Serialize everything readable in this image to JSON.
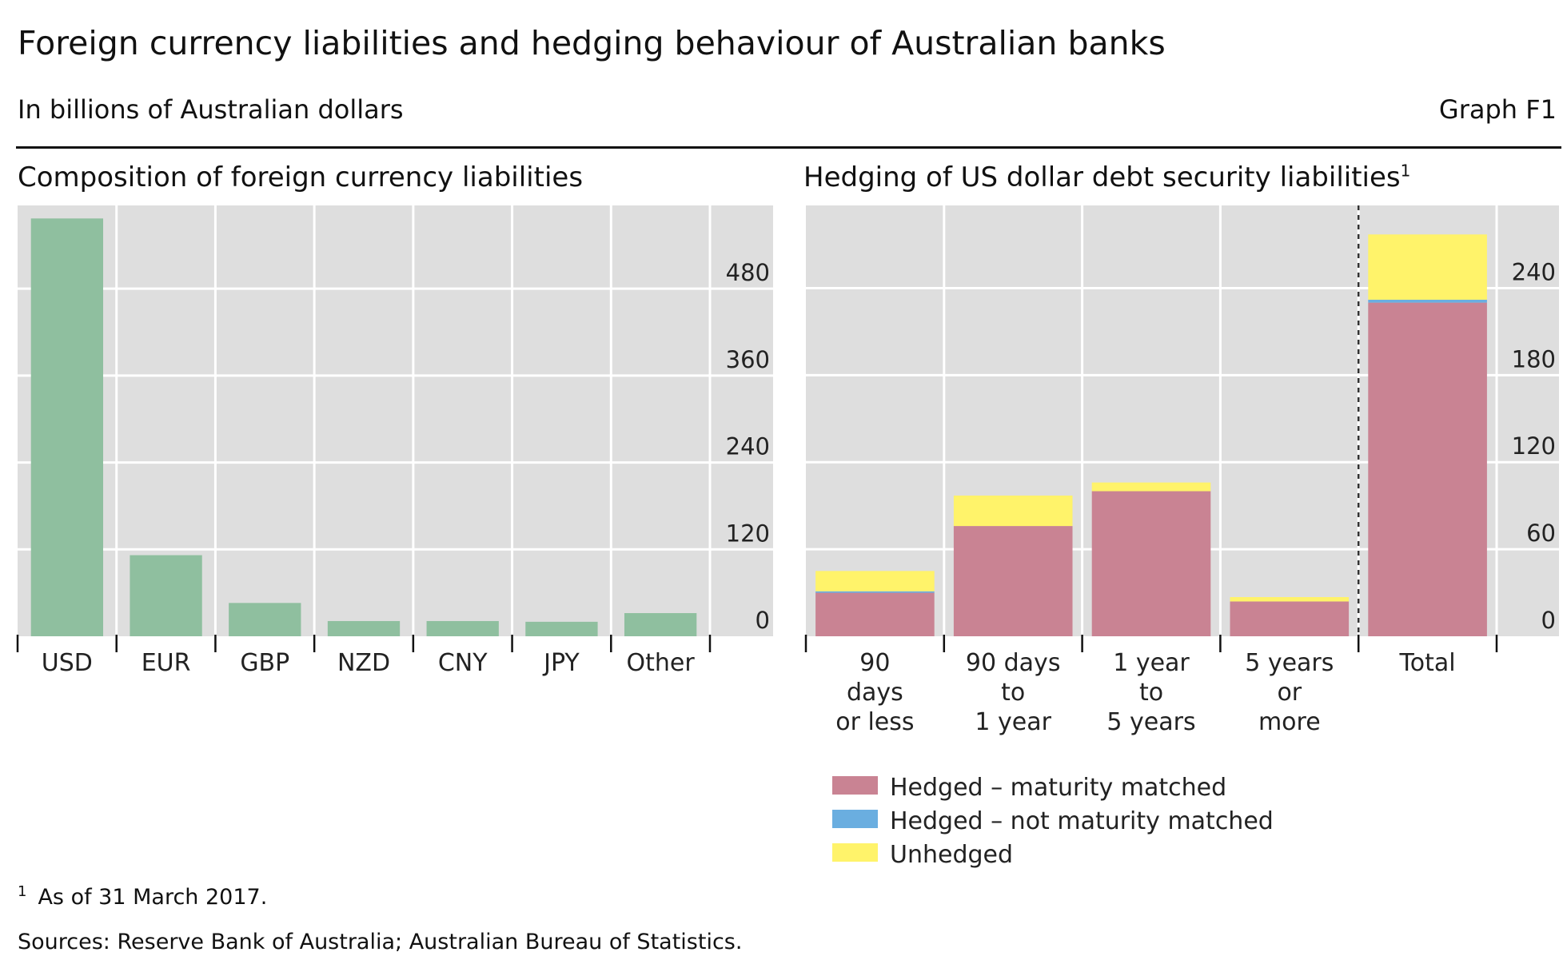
{
  "header": {
    "title": "Foreign currency liabilities and hedging behaviour of Australian banks",
    "subtitle": "In billions of Australian dollars",
    "graph_id": "Graph F1"
  },
  "left_panel": {
    "title": "Composition of foreign currency liabilities"
  },
  "right_panel": {
    "title": "Hedging of US dollar debt security liabilities",
    "title_sup": "1"
  },
  "footnote": {
    "marker": "1",
    "text": "As of 31 March 2017."
  },
  "sources": "Sources: Reserve Bank of Australia; Australian Bureau of Statistics.",
  "colors": {
    "plot_bg": "#dedede",
    "gridline": "#ffffff",
    "composition_bar": "#8fbf9f",
    "hedged_matched": "#c98393",
    "hedged_not_matched": "#6aaee0",
    "unhedged": "#fff36a"
  },
  "chart_data": [
    {
      "type": "bar",
      "title": "Composition of foreign currency liabilities",
      "categories": [
        "USD",
        "EUR",
        "GBP",
        "NZD",
        "CNY",
        "JPY",
        "Other"
      ],
      "values": [
        577,
        112,
        46,
        21,
        21,
        20,
        32
      ],
      "ylim": [
        0,
        595
      ],
      "yticks": [
        0,
        120,
        240,
        360,
        480
      ],
      "xlabel": "",
      "ylabel": "",
      "grid": true,
      "axis_side": "right"
    },
    {
      "type": "bar",
      "stacked": true,
      "title": "Hedging of US dollar debt security liabilities",
      "categories": [
        [
          "90",
          "days",
          "or less"
        ],
        [
          "90 days",
          "to",
          "1 year"
        ],
        [
          "1 year",
          "to",
          "5 years"
        ],
        [
          "5 years",
          "or",
          "more"
        ],
        [
          "Total"
        ]
      ],
      "series": [
        {
          "name": "Hedged – maturity matched",
          "values": [
            30,
            76,
            100,
            24,
            230
          ]
        },
        {
          "name": "Hedged – not maturity matched",
          "values": [
            1,
            0,
            0,
            0,
            2
          ]
        },
        {
          "name": "Unhedged",
          "values": [
            14,
            21,
            6,
            3,
            45
          ]
        }
      ],
      "ylim": [
        0,
        297
      ],
      "yticks": [
        0,
        60,
        120,
        180,
        240
      ],
      "grid": true,
      "axis_side": "right",
      "separator_before": "Total",
      "legend_position": "bottom-left"
    }
  ]
}
